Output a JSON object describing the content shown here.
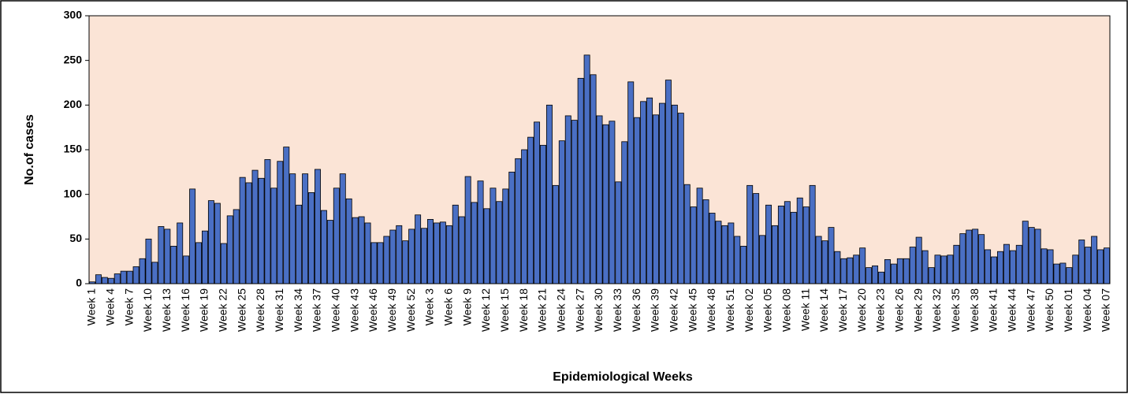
{
  "chart_data": {
    "type": "bar",
    "x_label": "Epidemiological Weeks",
    "y_label": "No.of cases",
    "color": "#4a6fc4",
    "background": "#fbe4d6",
    "ylim": [
      0,
      300
    ],
    "yticks": [
      0,
      50,
      100,
      150,
      200,
      250,
      300
    ],
    "grid": false,
    "categories": [
      "Week 1",
      null,
      null,
      "Week 4",
      null,
      null,
      "Week 7",
      null,
      null,
      "Week 10",
      null,
      null,
      "Week 13",
      null,
      null,
      "Week 16",
      null,
      null,
      "Week 19",
      null,
      null,
      "Week 22",
      null,
      null,
      "Week 25",
      null,
      null,
      "Week 28",
      null,
      null,
      "Week 31",
      null,
      null,
      "Week 34",
      null,
      null,
      "Week 37",
      null,
      null,
      "Week 40",
      null,
      null,
      "Week 43",
      null,
      null,
      "Week 46",
      null,
      null,
      "Week 49",
      null,
      null,
      "Week 52",
      null,
      null,
      "Week 3",
      null,
      null,
      "Week 6",
      null,
      null,
      "Week 9",
      null,
      null,
      "Week 12",
      null,
      null,
      "Week 15",
      null,
      null,
      "Week 18",
      null,
      null,
      "Week 21",
      null,
      null,
      "Week 24",
      null,
      null,
      "Week 27",
      null,
      null,
      "Week 30",
      null,
      null,
      "Week 33",
      null,
      null,
      "Week 36",
      null,
      null,
      "Week 39",
      null,
      null,
      "Week 42",
      null,
      null,
      "Week 45",
      null,
      null,
      "Week 48",
      null,
      null,
      "Week 51",
      null,
      null,
      "Week 02",
      null,
      null,
      "Week 05",
      null,
      null,
      "Week 08",
      null,
      null,
      "Week 11",
      null,
      null,
      "Week 14",
      null,
      null,
      "Week 17",
      null,
      null,
      "Week 20",
      null,
      null,
      "Week 23",
      null,
      null,
      "Week 26",
      null,
      null,
      "Week 29",
      null,
      null,
      "Week 32",
      null,
      null,
      "Week 35",
      null,
      null,
      "Week 38",
      null,
      null,
      "Week 41",
      null,
      null,
      "Week 44",
      null,
      null,
      "Week 47",
      null,
      null,
      "Week 50",
      null,
      null,
      "Week 01",
      null,
      null,
      "Week 04",
      null,
      null,
      "Week 07"
    ],
    "values": [
      2,
      10,
      7,
      6,
      11,
      14,
      14,
      19,
      28,
      50,
      24,
      64,
      61,
      42,
      68,
      31,
      106,
      46,
      59,
      93,
      90,
      45,
      76,
      83,
      119,
      113,
      127,
      118,
      139,
      107,
      137,
      153,
      123,
      88,
      123,
      102,
      128,
      82,
      71,
      107,
      123,
      95,
      74,
      75,
      68,
      46,
      46,
      53,
      60,
      65,
      48,
      61,
      77,
      62,
      72,
      68,
      69,
      65,
      88,
      75,
      120,
      91,
      115,
      84,
      107,
      92,
      106,
      125,
      140,
      150,
      164,
      181,
      155,
      200,
      110,
      160,
      188,
      183,
      230,
      256,
      234,
      188,
      178,
      182,
      114,
      159,
      226,
      186,
      204,
      208,
      189,
      202,
      228,
      200,
      191,
      111,
      86,
      107,
      94,
      79,
      70,
      65,
      68,
      53,
      42,
      110,
      101,
      54,
      88,
      65,
      87,
      92,
      80,
      96,
      86,
      110,
      53,
      48,
      63,
      36,
      28,
      29,
      32,
      40,
      18,
      20,
      13,
      27,
      22,
      28,
      28,
      41,
      52,
      37,
      18,
      32,
      31,
      32,
      43,
      56,
      60,
      61,
      55,
      38,
      30,
      36,
      44,
      37,
      43,
      70,
      63,
      61,
      39,
      38,
      22,
      23,
      18,
      32,
      49,
      41,
      53,
      38,
      40
    ]
  }
}
